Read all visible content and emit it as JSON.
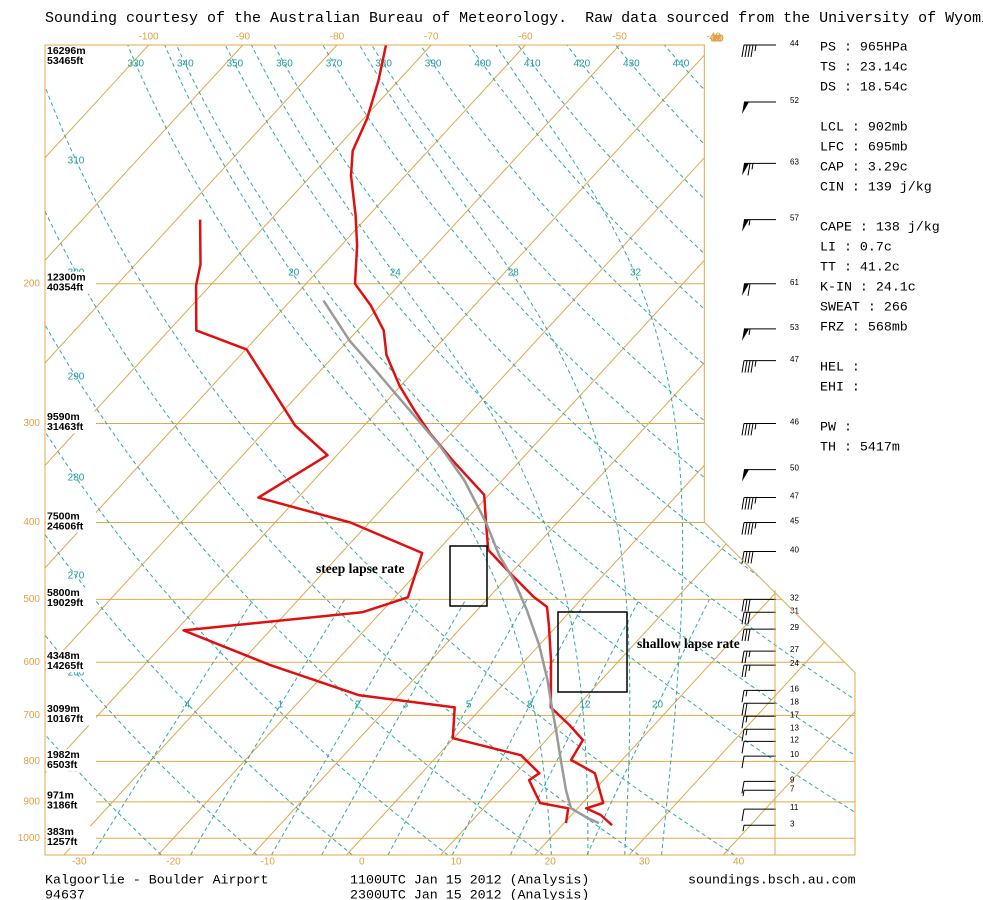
{
  "header": "Sounding courtesy of the Australian Bureau of Meteorology.  Raw data sourced from the University of Wyoming.",
  "chart_data": {
    "type": "skewt",
    "ylim": [
      1050,
      100
    ],
    "yticks": [
      200,
      300,
      400,
      500,
      600,
      700,
      800,
      900,
      1000
    ],
    "xlim": [
      -32,
      54
    ],
    "top_xlim": [
      -111,
      -41
    ],
    "xticks": [
      -30,
      -20,
      -10,
      0,
      10,
      20,
      30,
      40
    ],
    "top_xticks": [
      -100,
      -90,
      -80,
      -70,
      -60,
      -50,
      -40
    ],
    "skew_xticks": [
      -30,
      -20,
      -10,
      0,
      10,
      20,
      30,
      40
    ],
    "heights": [
      {
        "pressure": 100,
        "m": "16296m",
        "ft": "53465ft"
      },
      {
        "pressure": 200,
        "m": "12300m",
        "ft": "40354ft"
      },
      {
        "pressure": 300,
        "m": "9590m",
        "ft": "31463ft"
      },
      {
        "pressure": 400,
        "m": "7500m",
        "ft": "24606ft"
      },
      {
        "pressure": 500,
        "m": "5800m",
        "ft": "19029ft"
      },
      {
        "pressure": 600,
        "m": "4348m",
        "ft": "14265ft"
      },
      {
        "pressure": 700,
        "m": "3099m",
        "ft": "10167ft"
      },
      {
        "pressure": 800,
        "m": "1982m",
        "ft": "6503ft"
      },
      {
        "pressure": 900,
        "m": "971m",
        "ft": "3186ft"
      },
      {
        "pressure": 1000,
        "m": "383m",
        "ft": "1257ft"
      }
    ],
    "dry_adiabats": [
      250,
      260,
      270,
      280,
      290,
      300,
      310,
      330,
      340,
      350,
      360,
      370,
      380,
      390,
      400,
      410,
      420,
      430,
      440
    ],
    "moist_adiabats": [
      20,
      24,
      28,
      32
    ],
    "mixing_ratios": [
      {
        "value": 0.4,
        "label": ".4"
      },
      1,
      2,
      3,
      5,
      8,
      12,
      20
    ],
    "series": [
      {
        "color": "#e01010",
        "pressure": [
          100,
          111,
          124,
          136,
          146,
          164,
          179,
          200,
          213,
          229,
          246,
          269,
          289,
          309,
          336,
          369,
          400,
          433,
          462,
          497,
          511,
          539,
          596,
          684,
          720,
          752,
          797,
          828,
          903,
          917,
          935,
          963
        ],
        "values": [
          -74.8,
          -72.1,
          -69.6,
          -68.0,
          -65.8,
          -61.4,
          -58.3,
          -54.8,
          -51.0,
          -47.2,
          -44.5,
          -40.1,
          -36.1,
          -32.2,
          -26.8,
          -20.5,
          -17.6,
          -14.7,
          -10.3,
          -5.2,
          -2.9,
          -0.9,
          2.7,
          7.3,
          11.0,
          13.9,
          14.6,
          18.4,
          22.2,
          20.9,
          23.1,
          25.3
        ]
      },
      {
        "color": "#e01010",
        "pressure": [
          166,
          189,
          201,
          229,
          242,
          302,
          329,
          372,
          400,
          437,
          497,
          519,
          547,
          605,
          660,
          684,
          748,
          786,
          828,
          845,
          903,
          917,
          957
        ],
        "values": [
          -77.5,
          -73.1,
          -71.5,
          -67.1,
          -59.9,
          -47.3,
          -41.0,
          -44.2,
          -32.0,
          -21.4,
          -18.6,
          -22.0,
          -39.2,
          -26.6,
          -14.3,
          -2.9,
          -0.1,
          8.8,
          12.5,
          12.1,
          15.5,
          19.0,
          20.2
        ]
      },
      {
        "color": "#9a9a9a",
        "pressure": [
          210,
          236,
          257,
          289,
          320,
          354,
          400,
          440,
          473,
          516,
          571,
          632,
          670,
          731,
          797,
          870,
          917,
          944,
          957
        ],
        "values": [
          -56.5,
          -49.8,
          -44.2,
          -36.6,
          -30.0,
          -24.0,
          -17.6,
          -13.0,
          -9.0,
          -4.7,
          0.0,
          4.3,
          6.6,
          10.1,
          13.5,
          17.0,
          19.3,
          22.1,
          23.7
        ]
      }
    ],
    "winds": {
      "pressure": [
        100,
        118,
        141,
        166,
        200,
        228,
        250,
        300,
        343,
        372,
        400,
        435,
        500,
        519,
        545,
        581,
        605,
        651,
        676,
        702,
        729,
        755,
        788,
        848,
        870,
        919,
        963
      ],
      "values": [
        44,
        52,
        63,
        57,
        61,
        53,
        47,
        46,
        50,
        47,
        45,
        40,
        32,
        31,
        29,
        27,
        24,
        16,
        18,
        17,
        13,
        12,
        10,
        9,
        7,
        11,
        3
      ]
    },
    "stats": [
      [
        "PS : 965HPa",
        "TS : 23.14c",
        "DS : 18.54c"
      ],
      [
        "LCL : 902mb",
        "LFC : 695mb",
        "CAP : 3.29c",
        "CIN : 139 j/kg"
      ],
      [
        "CAPE : 138 j/kg",
        "LI : 0.7c",
        "TT : 41.2c",
        "K-IN : 24.1c",
        "SWEAT : 266",
        "FRZ : 568mb"
      ],
      [
        "HEL :",
        "EHI :"
      ],
      [
        "PW :",
        "TH : 5417m"
      ]
    ],
    "annotations": [
      "steep lapse rate",
      "shallow lapse rate"
    ]
  },
  "footer": {
    "station": "Kalgoorlie - Boulder Airport",
    "id": "94637",
    "runs": [
      {
        "text": "1100UTC Jan 15 2012 (Analysis)",
        "color": "#1010ff"
      },
      {
        "text": "2300UTC Jan 15 2012 (Analysis)",
        "color": "#ff1010"
      }
    ],
    "source": "soundings.bsch.au.com"
  }
}
